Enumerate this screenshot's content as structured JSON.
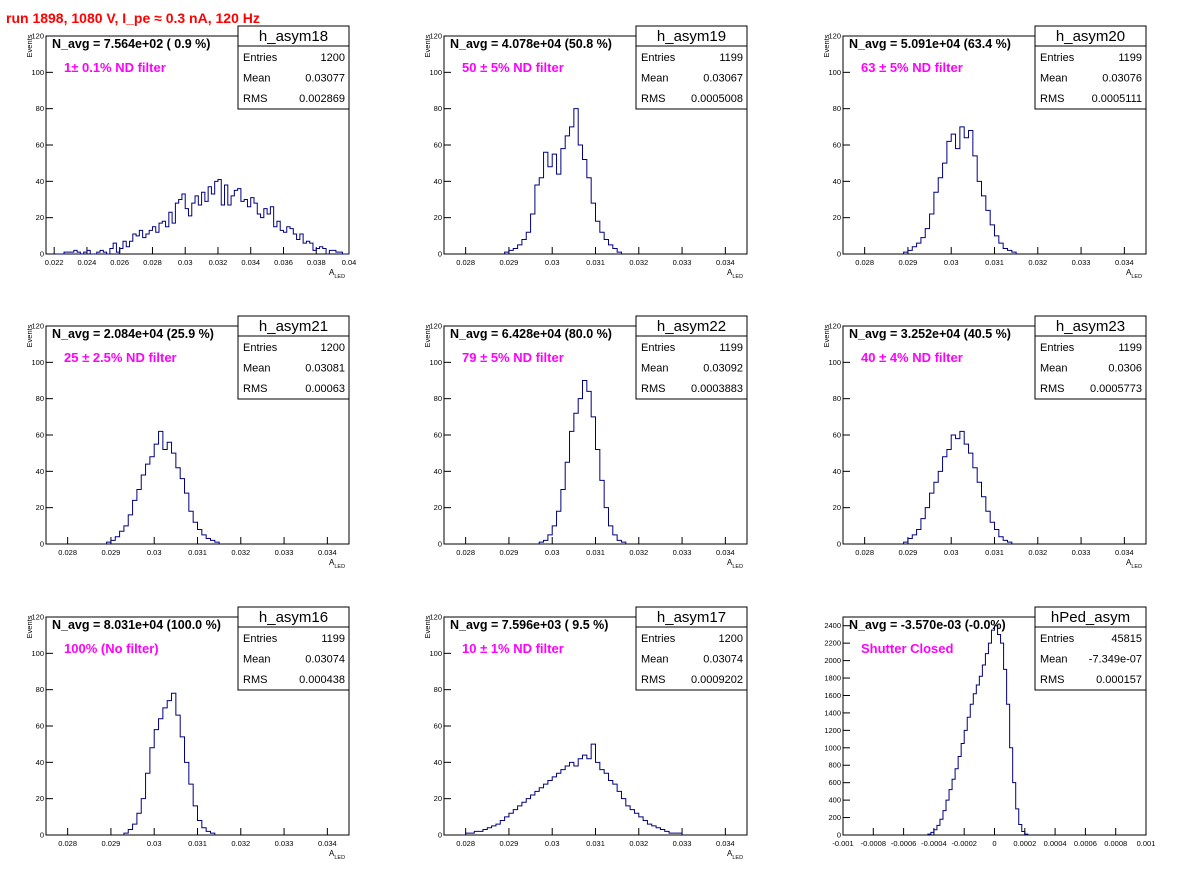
{
  "run_title": "run 1898,  1080 V, I_pe ≈ 0.3 nA, 120 Hz",
  "colors": {
    "hist": "#000080",
    "annotation": "#ff00ff",
    "title_red": "#ff0000",
    "axis": "#000000"
  },
  "stat_labels": {
    "entries": "Entries",
    "mean": "Mean",
    "rms": "RMS"
  },
  "chart_data": [
    {
      "type": "histogram",
      "name": "h_asym18",
      "ylabel": "Events",
      "xlabel": "A",
      "xlabel_sub": "LED",
      "navg": "N_avg = 7.564e+02 ( 0.9 %)",
      "annotation": "1± 0.1% ND filter",
      "stats": {
        "entries": "1200",
        "mean": "0.03077",
        "rms": "0.002869"
      },
      "xlim": [
        0.0215,
        0.04
      ],
      "ylim": [
        0,
        120
      ],
      "xticks": [
        0.022,
        0.024,
        0.026,
        0.028,
        0.03,
        0.032,
        0.034,
        0.036,
        0.038,
        0.04
      ],
      "xtick_labels": [
        "0.022",
        "0.024",
        "0.026",
        "0.028",
        "0.03",
        "0.032",
        "0.034",
        "0.036",
        "0.038",
        "0.04"
      ],
      "yticks": [
        0,
        20,
        40,
        60,
        80,
        100,
        120
      ],
      "ytick_labels": [
        "0",
        "20",
        "40",
        "60",
        "80",
        "100",
        "120"
      ],
      "bins": {
        "start": 0.022,
        "width": 0.0002,
        "counts": [
          0,
          0,
          0,
          1,
          1,
          1,
          2,
          1,
          0,
          1,
          2,
          0,
          0,
          1,
          2,
          1,
          0,
          3,
          6,
          1,
          3,
          7,
          4,
          7,
          11,
          10,
          13,
          9,
          11,
          13,
          15,
          12,
          17,
          18,
          15,
          23,
          17,
          28,
          30,
          33,
          25,
          21,
          28,
          32,
          27,
          34,
          29,
          37,
          33,
          40,
          41,
          27,
          38,
          27,
          32,
          35,
          36,
          29,
          30,
          26,
          31,
          28,
          22,
          20,
          25,
          22,
          26,
          15,
          18,
          13,
          12,
          15,
          14,
          11,
          8,
          11,
          6,
          7,
          6,
          2,
          3,
          4,
          3,
          0,
          2,
          2,
          1,
          1,
          0,
          0
        ]
      }
    },
    {
      "type": "histogram",
      "name": "h_asym19",
      "ylabel": "Events",
      "xlabel": "A",
      "xlabel_sub": "LED",
      "navg": "N_avg = 4.078e+04 (50.8 %)",
      "annotation": "50 ± 5% ND filter",
      "stats": {
        "entries": "1199",
        "mean": "0.03067",
        "rms": "0.0005008"
      },
      "xlim": [
        0.0275,
        0.0345
      ],
      "ylim": [
        0,
        120
      ],
      "xticks": [
        0.028,
        0.029,
        0.03,
        0.031,
        0.032,
        0.033,
        0.034
      ],
      "xtick_labels": [
        "0.028",
        "0.029",
        "0.03",
        "0.031",
        "0.032",
        "0.033",
        "0.034"
      ],
      "yticks": [
        0,
        20,
        40,
        60,
        80,
        100,
        120
      ],
      "ytick_labels": [
        "0",
        "20",
        "40",
        "60",
        "80",
        "100",
        "120"
      ],
      "bins": {
        "start": 0.0289,
        "width": 0.0001,
        "counts": [
          1,
          2,
          3,
          5,
          8,
          12,
          22,
          38,
          42,
          56,
          48,
          55,
          44,
          58,
          65,
          70,
          80,
          60,
          52,
          42,
          28,
          18,
          12,
          8,
          5,
          3,
          1
        ]
      }
    },
    {
      "type": "histogram",
      "name": "h_asym20",
      "ylabel": "Events",
      "xlabel": "A",
      "xlabel_sub": "LED",
      "navg": "N_avg = 5.091e+04 (63.4 %)",
      "annotation": "63 ± 5% ND filter",
      "stats": {
        "entries": "1199",
        "mean": "0.03076",
        "rms": "0.0005111"
      },
      "xlim": [
        0.0275,
        0.0345
      ],
      "ylim": [
        0,
        120
      ],
      "xticks": [
        0.028,
        0.029,
        0.03,
        0.031,
        0.032,
        0.033,
        0.034
      ],
      "xtick_labels": [
        "0.028",
        "0.029",
        "0.03",
        "0.031",
        "0.032",
        "0.033",
        "0.034"
      ],
      "yticks": [
        0,
        20,
        40,
        60,
        80,
        100,
        120
      ],
      "ytick_labels": [
        "0",
        "20",
        "40",
        "60",
        "80",
        "100",
        "120"
      ],
      "bins": {
        "start": 0.0289,
        "width": 0.0001,
        "counts": [
          1,
          2,
          4,
          6,
          9,
          14,
          22,
          34,
          42,
          50,
          62,
          66,
          58,
          70,
          64,
          68,
          54,
          40,
          32,
          24,
          16,
          10,
          6,
          3,
          2,
          1
        ]
      }
    },
    {
      "type": "histogram",
      "name": "h_asym21",
      "ylabel": "Events",
      "xlabel": "A",
      "xlabel_sub": "LED",
      "navg": "N_avg = 2.084e+04 (25.9 %)",
      "annotation": "25 ± 2.5% ND filter",
      "stats": {
        "entries": "1200",
        "mean": "0.03081",
        "rms": "0.00063"
      },
      "xlim": [
        0.0275,
        0.0345
      ],
      "ylim": [
        0,
        120
      ],
      "xticks": [
        0.028,
        0.029,
        0.03,
        0.031,
        0.032,
        0.033,
        0.034
      ],
      "xtick_labels": [
        "0.028",
        "0.029",
        "0.03",
        "0.031",
        "0.032",
        "0.033",
        "0.034"
      ],
      "yticks": [
        0,
        20,
        40,
        60,
        80,
        100,
        120
      ],
      "ytick_labels": [
        "0",
        "20",
        "40",
        "60",
        "80",
        "100",
        "120"
      ],
      "bins": {
        "start": 0.0289,
        "width": 0.0001,
        "counts": [
          1,
          2,
          4,
          7,
          10,
          16,
          24,
          30,
          38,
          44,
          48,
          55,
          62,
          52,
          56,
          50,
          42,
          36,
          28,
          18,
          12,
          8,
          5,
          3,
          2,
          1
        ]
      }
    },
    {
      "type": "histogram",
      "name": "h_asym22",
      "ylabel": "Events",
      "xlabel": "A",
      "xlabel_sub": "LED",
      "navg": "N_avg = 6.428e+04 (80.0 %)",
      "annotation": "79 ± 5% ND filter",
      "stats": {
        "entries": "1199",
        "mean": "0.03092",
        "rms": "0.0003883"
      },
      "xlim": [
        0.0275,
        0.0345
      ],
      "ylim": [
        0,
        120
      ],
      "xticks": [
        0.028,
        0.029,
        0.03,
        0.031,
        0.032,
        0.033,
        0.034
      ],
      "xtick_labels": [
        "0.028",
        "0.029",
        "0.03",
        "0.031",
        "0.032",
        "0.033",
        "0.034"
      ],
      "yticks": [
        0,
        20,
        40,
        60,
        80,
        100,
        120
      ],
      "ytick_labels": [
        "0",
        "20",
        "40",
        "60",
        "80",
        "100",
        "120"
      ],
      "bins": {
        "start": 0.0297,
        "width": 0.0001,
        "counts": [
          1,
          2,
          5,
          10,
          18,
          30,
          45,
          62,
          72,
          80,
          90,
          84,
          70,
          52,
          35,
          20,
          10,
          5,
          2,
          1
        ]
      }
    },
    {
      "type": "histogram",
      "name": "h_asym23",
      "ylabel": "Events",
      "xlabel": "A",
      "xlabel_sub": "LED",
      "navg": "N_avg = 3.252e+04 (40.5 %)",
      "annotation": "40 ± 4% ND filter",
      "stats": {
        "entries": "1199",
        "mean": "0.0306",
        "rms": "0.0005773"
      },
      "xlim": [
        0.0275,
        0.0345
      ],
      "ylim": [
        0,
        120
      ],
      "xticks": [
        0.028,
        0.029,
        0.03,
        0.031,
        0.032,
        0.033,
        0.034
      ],
      "xtick_labels": [
        "0.028",
        "0.029",
        "0.03",
        "0.031",
        "0.032",
        "0.033",
        "0.034"
      ],
      "yticks": [
        0,
        20,
        40,
        60,
        80,
        100,
        120
      ],
      "ytick_labels": [
        "0",
        "20",
        "40",
        "60",
        "80",
        "100",
        "120"
      ],
      "bins": {
        "start": 0.0289,
        "width": 0.0001,
        "counts": [
          1,
          3,
          5,
          8,
          14,
          20,
          28,
          34,
          40,
          48,
          52,
          60,
          58,
          62,
          55,
          50,
          42,
          34,
          26,
          18,
          12,
          8,
          4,
          2,
          1
        ]
      }
    },
    {
      "type": "histogram",
      "name": "h_asym16",
      "ylabel": "Events",
      "xlabel": "A",
      "xlabel_sub": "LED",
      "navg": "N_avg = 8.031e+04 (100.0 %)",
      "annotation": "100% (No filter)",
      "stats": {
        "entries": "1199",
        "mean": "0.03074",
        "rms": "0.000438"
      },
      "xlim": [
        0.0275,
        0.0345
      ],
      "ylim": [
        0,
        120
      ],
      "xticks": [
        0.028,
        0.029,
        0.03,
        0.031,
        0.032,
        0.033,
        0.034
      ],
      "xtick_labels": [
        "0.028",
        "0.029",
        "0.03",
        "0.031",
        "0.032",
        "0.033",
        "0.034"
      ],
      "yticks": [
        0,
        20,
        40,
        60,
        80,
        100,
        120
      ],
      "ytick_labels": [
        "0",
        "20",
        "40",
        "60",
        "80",
        "100",
        "120"
      ],
      "bins": {
        "start": 0.0293,
        "width": 0.0001,
        "counts": [
          1,
          3,
          6,
          12,
          20,
          34,
          48,
          58,
          64,
          70,
          74,
          78,
          66,
          54,
          40,
          28,
          16,
          8,
          4,
          2,
          1
        ]
      }
    },
    {
      "type": "histogram",
      "name": "h_asym17",
      "ylabel": "Events",
      "xlabel": "A",
      "xlabel_sub": "LED",
      "navg": "N_avg = 7.596e+03 ( 9.5 %)",
      "annotation": "10 ± 1% ND filter",
      "stats": {
        "entries": "1200",
        "mean": "0.03074",
        "rms": "0.0009202"
      },
      "xlim": [
        0.0275,
        0.0345
      ],
      "ylim": [
        0,
        120
      ],
      "xticks": [
        0.028,
        0.029,
        0.03,
        0.031,
        0.032,
        0.033,
        0.034
      ],
      "xtick_labels": [
        "0.028",
        "0.029",
        "0.03",
        "0.031",
        "0.032",
        "0.033",
        "0.034"
      ],
      "yticks": [
        0,
        20,
        40,
        60,
        80,
        100,
        120
      ],
      "ytick_labels": [
        "0",
        "20",
        "40",
        "60",
        "80",
        "100",
        "120"
      ],
      "bins": {
        "start": 0.0279,
        "width": 0.0001,
        "counts": [
          0,
          1,
          1,
          2,
          2,
          3,
          4,
          5,
          6,
          8,
          10,
          12,
          14,
          16,
          18,
          20,
          22,
          24,
          26,
          28,
          30,
          32,
          34,
          36,
          38,
          40,
          38,
          42,
          44,
          42,
          50,
          40,
          36,
          34,
          30,
          28,
          24,
          20,
          16,
          14,
          12,
          10,
          8,
          6,
          5,
          4,
          3,
          2,
          1,
          1,
          1
        ]
      }
    },
    {
      "type": "histogram",
      "name": "hPed_asym",
      "ylabel": "",
      "xlabel": "",
      "xlabel_sub": "",
      "navg": "N_avg = -3.570e-03 (-0.0%)",
      "annotation": "Shutter Closed",
      "stats": {
        "entries": "45815",
        "mean": "-7.349e-07",
        "rms": "0.000157"
      },
      "xlim": [
        -0.001,
        0.001
      ],
      "ylim": [
        0,
        2500
      ],
      "xticks": [
        -0.001,
        -0.0008,
        -0.0006,
        -0.0004,
        -0.0002,
        0,
        0.0002,
        0.0004,
        0.0006,
        0.0008,
        0.001
      ],
      "xtick_labels": [
        "-0.001",
        "-0.0008",
        "-0.0006",
        "-0.0004",
        "-0.0002",
        "0",
        "0.0002",
        "0.0004",
        "0.0006",
        "0.0008",
        "0.001"
      ],
      "yticks": [
        0,
        200,
        400,
        600,
        800,
        1000,
        1200,
        1400,
        1600,
        1800,
        2000,
        2200,
        2400
      ],
      "ytick_labels": [
        "0",
        "200",
        "400",
        "600",
        "800",
        "1000",
        "1200",
        "1400",
        "1600",
        "1800",
        "2000",
        "2200",
        "2400"
      ],
      "bins": {
        "start": -0.00044,
        "width": 2e-05,
        "counts": [
          10,
          30,
          60,
          110,
          180,
          280,
          400,
          520,
          640,
          760,
          900,
          1050,
          1200,
          1350,
          1500,
          1620,
          1720,
          1820,
          1950,
          2080,
          2200,
          2350,
          2400,
          2300,
          2200,
          1900,
          1500,
          1000,
          600,
          300,
          120,
          40,
          10
        ]
      }
    }
  ]
}
